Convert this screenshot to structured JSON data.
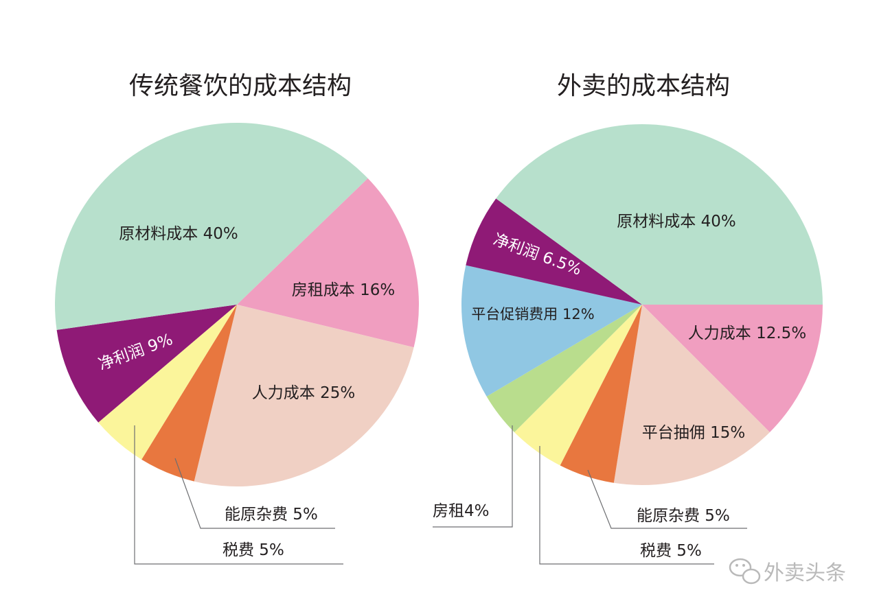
{
  "chart_data": [
    {
      "type": "pie",
      "title": "传统餐饮的成本结构",
      "start_angle_deg": 316,
      "slices": [
        {
          "name": "房租成本",
          "value": 16,
          "label": "房租成本 16%",
          "color": "#f09ec0"
        },
        {
          "name": "人力成本",
          "value": 25,
          "label": "人力成本 25%",
          "color": "#f0d0c4"
        },
        {
          "name": "能原杂费",
          "value": 5,
          "label": "能原杂费 5%",
          "color": "#e8773f"
        },
        {
          "name": "税费",
          "value": 5,
          "label": "税费 5%",
          "color": "#fbf59b"
        },
        {
          "name": "净利润",
          "value": 9,
          "label": "净利润 9%",
          "color": "#8f1a76"
        },
        {
          "name": "原材料成本",
          "value": 40,
          "label": "原材料成本 40%",
          "color": "#b7e0cc"
        }
      ]
    },
    {
      "type": "pie",
      "title": "外卖的成本结构",
      "start_angle_deg": 0,
      "slices": [
        {
          "name": "人力成本",
          "value": 12.5,
          "label": "人力成本 12.5%",
          "color": "#f09ec0"
        },
        {
          "name": "平台抽佣",
          "value": 15,
          "label": "平台抽佣 15%",
          "color": "#f0d0c4"
        },
        {
          "name": "能原杂费",
          "value": 5,
          "label": "能原杂费 5%",
          "color": "#e8773f"
        },
        {
          "name": "税费",
          "value": 5,
          "label": "税费 5%",
          "color": "#fbf59b"
        },
        {
          "name": "房租",
          "value": 4,
          "label": "房租4%",
          "color": "#b9dd8d"
        },
        {
          "name": "平台促销费用",
          "value": 12,
          "label": "平台促销费用 12%",
          "color": "#90c7e3"
        },
        {
          "name": "净利润",
          "value": 6.5,
          "label": "净利润 6.5%",
          "color": "#8f1a76"
        },
        {
          "name": "原材料成本",
          "value": 40,
          "label": "原材料成本 40%",
          "color": "#b7e0cc"
        }
      ]
    }
  ],
  "watermark": {
    "icon": "wechat-icon",
    "text": "外卖头条"
  }
}
